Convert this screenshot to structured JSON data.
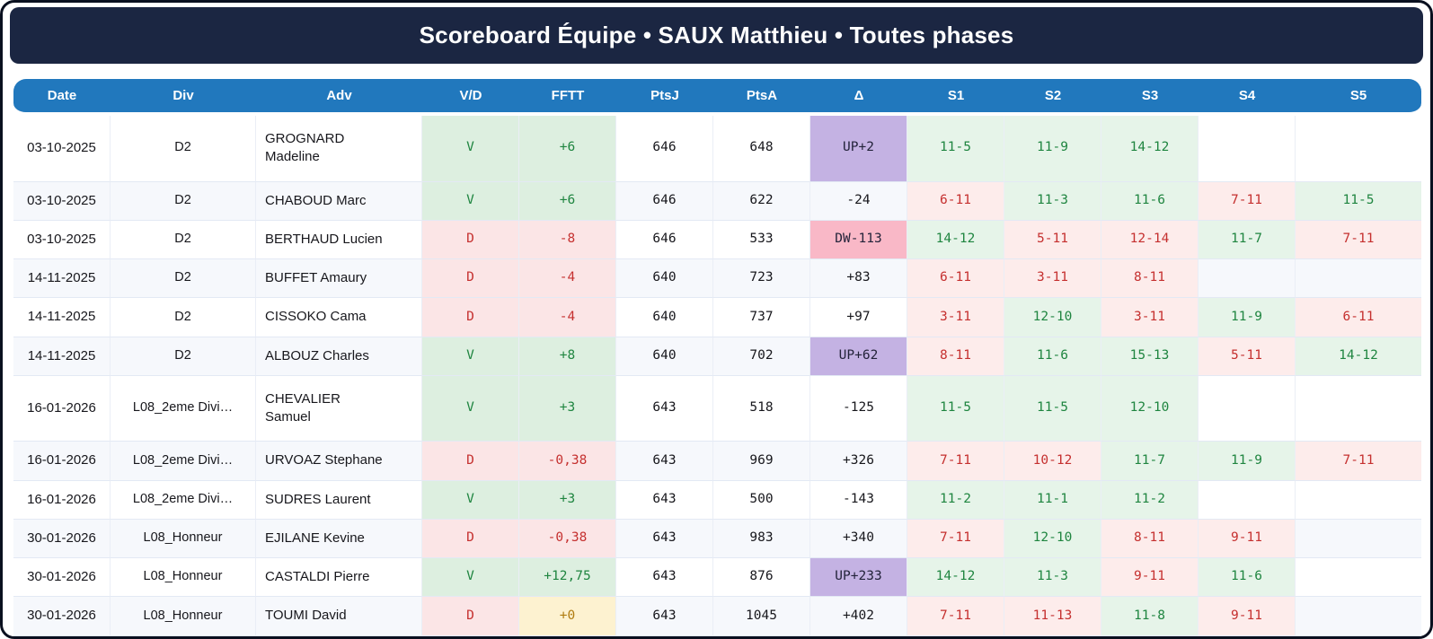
{
  "title": "Scoreboard Équipe • SAUX Matthieu • Toutes phases",
  "colors": {
    "title_bar_bg": "#1b2642",
    "table_header_bg": "#2178bd",
    "win_bg": "#ddefe0",
    "win_text": "#1f8540",
    "lose_bg": "#fbe5e6",
    "lose_text": "#c5302f",
    "set_win_bg": "#e6f4e9",
    "set_lose_bg": "#fdeceb",
    "delta_up_bg": "#c4b2e3",
    "delta_down_bg": "#f9b8c7",
    "zero_bg": "#fdf2d0",
    "zero_text": "#b07c10",
    "row_stripe_bg": "#f6f8fc"
  },
  "table": {
    "columns": [
      {
        "key": "date",
        "label": "Date"
      },
      {
        "key": "div",
        "label": "Div"
      },
      {
        "key": "adv",
        "label": "Adv"
      },
      {
        "key": "vd",
        "label": "V/D"
      },
      {
        "key": "fftt",
        "label": "FFTT"
      },
      {
        "key": "ptsj",
        "label": "PtsJ"
      },
      {
        "key": "ptsa",
        "label": "PtsA"
      },
      {
        "key": "delta",
        "label": "Δ"
      },
      {
        "key": "s1",
        "label": "S1"
      },
      {
        "key": "s2",
        "label": "S2"
      },
      {
        "key": "s3",
        "label": "S3"
      },
      {
        "key": "s4",
        "label": "S4"
      },
      {
        "key": "s5",
        "label": "S5"
      }
    ],
    "rows": [
      {
        "date": "03-10-2025",
        "div": "D2",
        "adv": "GROGNARD",
        "adv2": "Madeline",
        "vd": {
          "text": "V",
          "state": "win"
        },
        "fftt": {
          "text": "+6",
          "state": "win"
        },
        "ptsj": "646",
        "ptsa": "648",
        "delta": {
          "text": "UP+2",
          "state": "up"
        },
        "sets": [
          {
            "text": "11-5",
            "state": "win"
          },
          {
            "text": "11-9",
            "state": "win"
          },
          {
            "text": "14-12",
            "state": "win"
          },
          {
            "text": "",
            "state": "none"
          },
          {
            "text": "",
            "state": "none"
          }
        ]
      },
      {
        "date": "03-10-2025",
        "div": "D2",
        "adv": "CHABOUD Marc",
        "adv2": null,
        "vd": {
          "text": "V",
          "state": "win"
        },
        "fftt": {
          "text": "+6",
          "state": "win"
        },
        "ptsj": "646",
        "ptsa": "622",
        "delta": {
          "text": "-24",
          "state": "plain"
        },
        "sets": [
          {
            "text": "6-11",
            "state": "lose"
          },
          {
            "text": "11-3",
            "state": "win"
          },
          {
            "text": "11-6",
            "state": "win"
          },
          {
            "text": "7-11",
            "state": "lose"
          },
          {
            "text": "11-5",
            "state": "win"
          }
        ]
      },
      {
        "date": "03-10-2025",
        "div": "D2",
        "adv": "BERTHAUD Lucien",
        "adv2": null,
        "vd": {
          "text": "D",
          "state": "lose"
        },
        "fftt": {
          "text": "-8",
          "state": "lose"
        },
        "ptsj": "646",
        "ptsa": "533",
        "delta": {
          "text": "DW-113",
          "state": "down"
        },
        "sets": [
          {
            "text": "14-12",
            "state": "win"
          },
          {
            "text": "5-11",
            "state": "lose"
          },
          {
            "text": "12-14",
            "state": "lose"
          },
          {
            "text": "11-7",
            "state": "win"
          },
          {
            "text": "7-11",
            "state": "lose"
          }
        ]
      },
      {
        "date": "14-11-2025",
        "div": "D2",
        "adv": "BUFFET Amaury",
        "adv2": null,
        "vd": {
          "text": "D",
          "state": "lose"
        },
        "fftt": {
          "text": "-4",
          "state": "lose"
        },
        "ptsj": "640",
        "ptsa": "723",
        "delta": {
          "text": "+83",
          "state": "plain"
        },
        "sets": [
          {
            "text": "6-11",
            "state": "lose"
          },
          {
            "text": "3-11",
            "state": "lose"
          },
          {
            "text": "8-11",
            "state": "lose"
          },
          {
            "text": "",
            "state": "none"
          },
          {
            "text": "",
            "state": "none"
          }
        ]
      },
      {
        "date": "14-11-2025",
        "div": "D2",
        "adv": "CISSOKO Cama",
        "adv2": null,
        "vd": {
          "text": "D",
          "state": "lose"
        },
        "fftt": {
          "text": "-4",
          "state": "lose"
        },
        "ptsj": "640",
        "ptsa": "737",
        "delta": {
          "text": "+97",
          "state": "plain"
        },
        "sets": [
          {
            "text": "3-11",
            "state": "lose"
          },
          {
            "text": "12-10",
            "state": "win"
          },
          {
            "text": "3-11",
            "state": "lose"
          },
          {
            "text": "11-9",
            "state": "win"
          },
          {
            "text": "6-11",
            "state": "lose"
          }
        ]
      },
      {
        "date": "14-11-2025",
        "div": "D2",
        "adv": "ALBOUZ Charles",
        "adv2": null,
        "vd": {
          "text": "V",
          "state": "win"
        },
        "fftt": {
          "text": "+8",
          "state": "win"
        },
        "ptsj": "640",
        "ptsa": "702",
        "delta": {
          "text": "UP+62",
          "state": "up"
        },
        "sets": [
          {
            "text": "8-11",
            "state": "lose"
          },
          {
            "text": "11-6",
            "state": "win"
          },
          {
            "text": "15-13",
            "state": "win"
          },
          {
            "text": "5-11",
            "state": "lose"
          },
          {
            "text": "14-12",
            "state": "win"
          }
        ]
      },
      {
        "date": "16-01-2026",
        "div": "L08_2eme Divi…",
        "adv": "CHEVALIER",
        "adv2": "Samuel",
        "vd": {
          "text": "V",
          "state": "win"
        },
        "fftt": {
          "text": "+3",
          "state": "win"
        },
        "ptsj": "643",
        "ptsa": "518",
        "delta": {
          "text": "-125",
          "state": "plain"
        },
        "sets": [
          {
            "text": "11-5",
            "state": "win"
          },
          {
            "text": "11-5",
            "state": "win"
          },
          {
            "text": "12-10",
            "state": "win"
          },
          {
            "text": "",
            "state": "none"
          },
          {
            "text": "",
            "state": "none"
          }
        ]
      },
      {
        "date": "16-01-2026",
        "div": "L08_2eme Divi…",
        "adv": "URVOAZ Stephane",
        "adv2": null,
        "vd": {
          "text": "D",
          "state": "lose"
        },
        "fftt": {
          "text": "-0,38",
          "state": "lose"
        },
        "ptsj": "643",
        "ptsa": "969",
        "delta": {
          "text": "+326",
          "state": "plain"
        },
        "sets": [
          {
            "text": "7-11",
            "state": "lose"
          },
          {
            "text": "10-12",
            "state": "lose"
          },
          {
            "text": "11-7",
            "state": "win"
          },
          {
            "text": "11-9",
            "state": "win"
          },
          {
            "text": "7-11",
            "state": "lose"
          }
        ]
      },
      {
        "date": "16-01-2026",
        "div": "L08_2eme Divi…",
        "adv": "SUDRES Laurent",
        "adv2": null,
        "vd": {
          "text": "V",
          "state": "win"
        },
        "fftt": {
          "text": "+3",
          "state": "win"
        },
        "ptsj": "643",
        "ptsa": "500",
        "delta": {
          "text": "-143",
          "state": "plain"
        },
        "sets": [
          {
            "text": "11-2",
            "state": "win"
          },
          {
            "text": "11-1",
            "state": "win"
          },
          {
            "text": "11-2",
            "state": "win"
          },
          {
            "text": "",
            "state": "none"
          },
          {
            "text": "",
            "state": "none"
          }
        ]
      },
      {
        "date": "30-01-2026",
        "div": "L08_Honneur",
        "adv": "EJILANE Kevine",
        "adv2": null,
        "vd": {
          "text": "D",
          "state": "lose"
        },
        "fftt": {
          "text": "-0,38",
          "state": "lose"
        },
        "ptsj": "643",
        "ptsa": "983",
        "delta": {
          "text": "+340",
          "state": "plain"
        },
        "sets": [
          {
            "text": "7-11",
            "state": "lose"
          },
          {
            "text": "12-10",
            "state": "win"
          },
          {
            "text": "8-11",
            "state": "lose"
          },
          {
            "text": "9-11",
            "state": "lose"
          },
          {
            "text": "",
            "state": "none"
          }
        ]
      },
      {
        "date": "30-01-2026",
        "div": "L08_Honneur",
        "adv": "CASTALDI Pierre",
        "adv2": null,
        "vd": {
          "text": "V",
          "state": "win"
        },
        "fftt": {
          "text": "+12,75",
          "state": "win"
        },
        "ptsj": "643",
        "ptsa": "876",
        "delta": {
          "text": "UP+233",
          "state": "up"
        },
        "sets": [
          {
            "text": "14-12",
            "state": "win"
          },
          {
            "text": "11-3",
            "state": "win"
          },
          {
            "text": "9-11",
            "state": "lose"
          },
          {
            "text": "11-6",
            "state": "win"
          },
          {
            "text": "",
            "state": "none"
          }
        ]
      },
      {
        "date": "30-01-2026",
        "div": "L08_Honneur",
        "adv": "TOUMI David",
        "adv2": null,
        "vd": {
          "text": "D",
          "state": "lose"
        },
        "fftt": {
          "text": "+0",
          "state": "zero"
        },
        "ptsj": "643",
        "ptsa": "1045",
        "delta": {
          "text": "+402",
          "state": "plain"
        },
        "sets": [
          {
            "text": "7-11",
            "state": "lose"
          },
          {
            "text": "11-13",
            "state": "lose"
          },
          {
            "text": "11-8",
            "state": "win"
          },
          {
            "text": "9-11",
            "state": "lose"
          },
          {
            "text": "",
            "state": "none"
          }
        ]
      }
    ]
  }
}
